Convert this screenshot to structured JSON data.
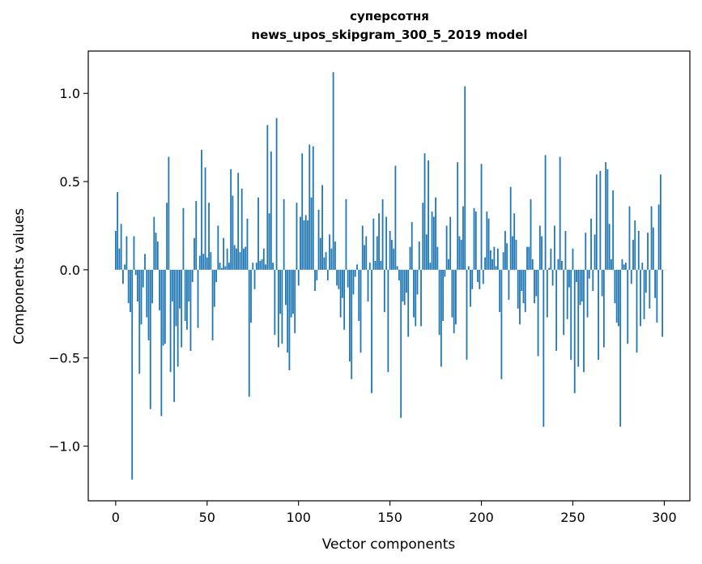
{
  "chart_data": {
    "type": "bar",
    "title": "суперсотня",
    "subtitle": "news_upos_skipgram_300_5_2019 model",
    "xlabel": "Vector components",
    "ylabel": "Components values",
    "xlim": [
      -15,
      314
    ],
    "ylim": [
      -1.31,
      1.24
    ],
    "xticks": [
      0,
      50,
      100,
      150,
      200,
      250,
      300
    ],
    "yticks": [
      -1.0,
      -0.5,
      0.0,
      0.5,
      1.0
    ],
    "ytick_labels": [
      "−1.0",
      "−0.5",
      "0.0",
      "0.5",
      "1.0"
    ],
    "grid": false,
    "bar_color": "#1f77b4",
    "values": [
      0.22,
      0.44,
      0.12,
      0.26,
      -0.08,
      0.03,
      0.19,
      -0.19,
      -0.24,
      -1.19,
      0.19,
      -0.03,
      -0.18,
      -0.59,
      -0.31,
      -0.1,
      0.09,
      -0.27,
      -0.4,
      -0.79,
      -0.19,
      0.3,
      0.21,
      0.16,
      -0.23,
      -0.83,
      -0.43,
      -0.42,
      0.38,
      0.64,
      -0.58,
      -0.18,
      -0.75,
      -0.32,
      -0.55,
      -0.22,
      -0.44,
      0.35,
      -0.29,
      -0.34,
      -0.18,
      -0.46,
      -0.07,
      0.18,
      0.39,
      -0.33,
      0.08,
      0.68,
      0.09,
      0.58,
      0.07,
      0.38,
      0.1,
      -0.4,
      -0.21,
      -0.07,
      0.25,
      0.04,
      0.01,
      0.18,
      0.02,
      0.12,
      0.04,
      0.57,
      0.42,
      0.14,
      0.12,
      0.55,
      0.1,
      0.46,
      0.12,
      0.13,
      0.29,
      -0.72,
      -0.3,
      0.04,
      -0.11,
      0.04,
      0.41,
      0.05,
      0.06,
      0.12,
      0.03,
      0.82,
      0.32,
      0.67,
      0.04,
      -0.37,
      0.86,
      -0.44,
      -0.25,
      -0.42,
      0.4,
      -0.2,
      -0.47,
      -0.57,
      -0.27,
      -0.25,
      -0.36,
      0.38,
      -0.09,
      0.3,
      0.66,
      0.28,
      0.31,
      0.28,
      0.71,
      0.41,
      0.7,
      -0.12,
      -0.06,
      0.34,
      0.18,
      0.48,
      0.07,
      0.1,
      -0.06,
      0.2,
      0.12,
      1.12,
      0.16,
      -0.09,
      -0.11,
      -0.27,
      -0.16,
      -0.34,
      0.4,
      -0.1,
      -0.52,
      -0.62,
      -0.14,
      -0.04,
      0.03,
      -0.29,
      -0.47,
      0.25,
      0.14,
      0.19,
      -0.18,
      0.04,
      -0.7,
      0.29,
      0.05,
      0.19,
      0.32,
      0.05,
      0.4,
      -0.24,
      0.3,
      -0.58,
      0.22,
      0.17,
      0.12,
      0.59,
      0.02,
      -0.06,
      -0.84,
      -0.18,
      -0.2,
      -0.13,
      -0.38,
      0.13,
      0.27,
      -0.27,
      -0.32,
      -0.14,
      0.16,
      -0.32,
      0.38,
      0.66,
      0.2,
      0.62,
      0.04,
      0.33,
      0.3,
      0.41,
      0.13,
      -0.37,
      -0.55,
      -0.29,
      -0.04,
      0.25,
      0.06,
      0.3,
      -0.27,
      -0.36,
      -0.31,
      0.61,
      0.19,
      0.17,
      0.36,
      1.04,
      -0.51,
      0.02,
      -0.21,
      -0.11,
      0.35,
      0.33,
      -0.07,
      -0.11,
      0.6,
      -0.08,
      0.07,
      0.33,
      0.29,
      0.11,
      0.06,
      0.13,
      0.02,
      0.12,
      -0.24,
      -0.62,
      0.1,
      0.22,
      0.15,
      -0.17,
      0.47,
      0.19,
      0.32,
      0.17,
      -0.22,
      -0.31,
      -0.12,
      -0.19,
      -0.24,
      0.13,
      0.13,
      0.4,
      0.06,
      -0.19,
      -0.15,
      -0.49,
      0.25,
      0.19,
      -0.89,
      0.65,
      -0.27,
      0.01,
      0.12,
      -0.09,
      0.25,
      -0.46,
      0.06,
      0.64,
      0.05,
      -0.37,
      0.22,
      -0.28,
      -0.1,
      -0.51,
      0.12,
      -0.7,
      -0.07,
      -0.55,
      -0.2,
      -0.18,
      -0.58,
      0.21,
      -0.27,
      -0.05,
      0.29,
      -0.12,
      0.2,
      0.54,
      -0.51,
      0.56,
      -0.15,
      -0.44,
      0.61,
      0.57,
      0.26,
      0.06,
      0.45,
      -0.19,
      -0.3,
      -0.32,
      -0.89,
      0.06,
      0.03,
      0.04,
      -0.42,
      0.36,
      -0.08,
      0.17,
      0.28,
      -0.47,
      0.22,
      -0.32,
      0.04,
      -0.28,
      -0.13,
      0.21,
      -0.22,
      0.36,
      0.24,
      -0.16,
      -0.3,
      0.37,
      0.54,
      -0.38
    ]
  }
}
